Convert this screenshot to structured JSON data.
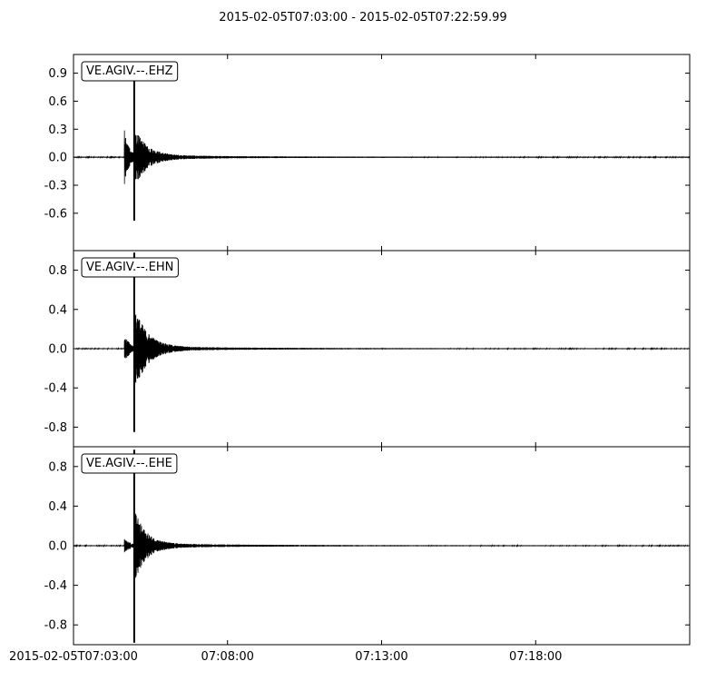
{
  "title": "2015-02-05T07:03:00  -  2015-02-05T07:22:59.99",
  "chart_data": {
    "type": "line",
    "title": "2015-02-05T07:03:00  -  2015-02-05T07:22:59.99",
    "x_unit": "minutes after 2015-02-05T07:03:00",
    "xlim": [
      0,
      20
    ],
    "xticks": [
      {
        "value": 0,
        "label": "2015-02-05T07:03:00"
      },
      {
        "value": 5,
        "label": "07:08:00"
      },
      {
        "value": 10,
        "label": "07:13:00"
      },
      {
        "value": 15,
        "label": "07:18:00"
      }
    ],
    "grid": false,
    "series": [
      {
        "name": "VE.AGIV.--.EHZ",
        "ylim": [
          -1.0,
          1.1
        ],
        "yticks": [
          "0.9",
          "0.6",
          "0.3",
          "0.0",
          "-0.3",
          "-0.6"
        ],
        "ytick_values": [
          0.9,
          0.6,
          0.3,
          0.0,
          -0.3,
          -0.6
        ],
        "p_onset_min": 1.65,
        "s_arrival_min": 2.0,
        "peak_max": 0.85,
        "peak_min": -0.68,
        "p_amp": 0.3,
        "coda_amp": 0.28,
        "coda_decay_min": 0.9,
        "noise_amp": 0.004
      },
      {
        "name": "VE.AGIV.--.EHN",
        "ylim": [
          -1.0,
          1.0
        ],
        "yticks": [
          "0.8",
          "0.4",
          "0.0",
          "-0.4",
          "-0.8"
        ],
        "ytick_values": [
          0.8,
          0.4,
          0.0,
          -0.4,
          -0.8
        ],
        "p_onset_min": 1.65,
        "s_arrival_min": 2.0,
        "peak_max": 0.98,
        "peak_min": -0.85,
        "p_amp": 0.16,
        "coda_amp": 0.4,
        "coda_decay_min": 0.9,
        "noise_amp": 0.004
      },
      {
        "name": "VE.AGIV.--.EHE",
        "ylim": [
          -1.0,
          1.0
        ],
        "yticks": [
          "0.8",
          "0.4",
          "0.0",
          "-0.4",
          "-0.8"
        ],
        "ytick_values": [
          0.8,
          0.4,
          0.0,
          -0.4,
          -0.8
        ],
        "p_onset_min": 1.65,
        "s_arrival_min": 2.0,
        "peak_max": 0.97,
        "peak_min": -0.98,
        "p_amp": 0.1,
        "coda_amp": 0.33,
        "coda_decay_min": 0.8,
        "noise_amp": 0.004
      }
    ],
    "colors": {
      "trace": "#000000",
      "axes": "#000000",
      "label_box_border": "#000000",
      "label_box_fill": "#ffffff"
    }
  }
}
